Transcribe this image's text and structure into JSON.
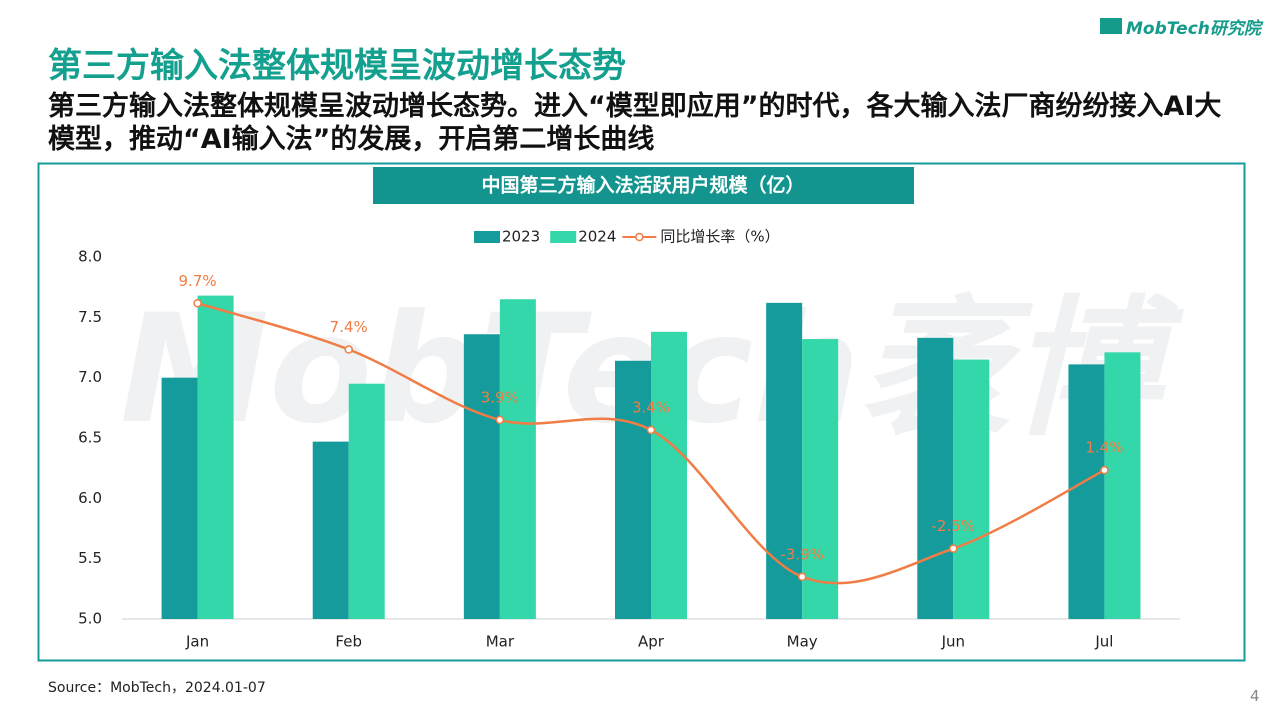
{
  "logo": "MobTech研究院",
  "title": "第三方输入法整体规模呈波动增长态势",
  "subtitle": "第三方输入法整体规模呈波动增长态势。进入“模型即应用”的时代，各大输入法厂商纷纷接入AI大模型，推动“AI输入法”的发展，开启第二增长曲线",
  "watermark": "MobTech袤博",
  "source": "Source：MobTech，2024.01-07",
  "page_number": "4",
  "chart_data": {
    "type": "bar",
    "title": "中国第三方输入法活跃用户规模（亿）",
    "categories": [
      "Jan",
      "Feb",
      "Mar",
      "Apr",
      "May",
      "Jun",
      "Jul"
    ],
    "series": [
      {
        "name": "2023",
        "type": "bar",
        "color": "#159b9b",
        "values": [
          7.0,
          6.47,
          7.36,
          7.14,
          7.62,
          7.33,
          7.11
        ]
      },
      {
        "name": "2024",
        "type": "bar",
        "color": "#33d7aa",
        "values": [
          7.68,
          6.95,
          7.65,
          7.38,
          7.32,
          7.15,
          7.21
        ]
      },
      {
        "name": "同比增长率（%）",
        "type": "line",
        "axis": "y2",
        "color": "#ef7d45",
        "values": [
          9.7,
          7.4,
          3.9,
          3.4,
          -3.9,
          -2.5,
          1.4
        ],
        "value_labels": [
          "9.7%",
          "7.4%",
          "3.9%",
          "3.4%",
          "-3.9%",
          "-2.5%",
          "1.4%"
        ]
      }
    ],
    "ylim": [
      5,
      8
    ],
    "yticks": [
      {
        "value": 5,
        "label": "5.0"
      },
      5.5,
      {
        "value": 6,
        "label": "6.0"
      },
      6.5,
      {
        "value": 7,
        "label": "7.0"
      },
      7.5,
      {
        "value": 8,
        "label": "8.0"
      }
    ],
    "y2lim": [
      -6,
      12
    ],
    "legend": "top"
  }
}
